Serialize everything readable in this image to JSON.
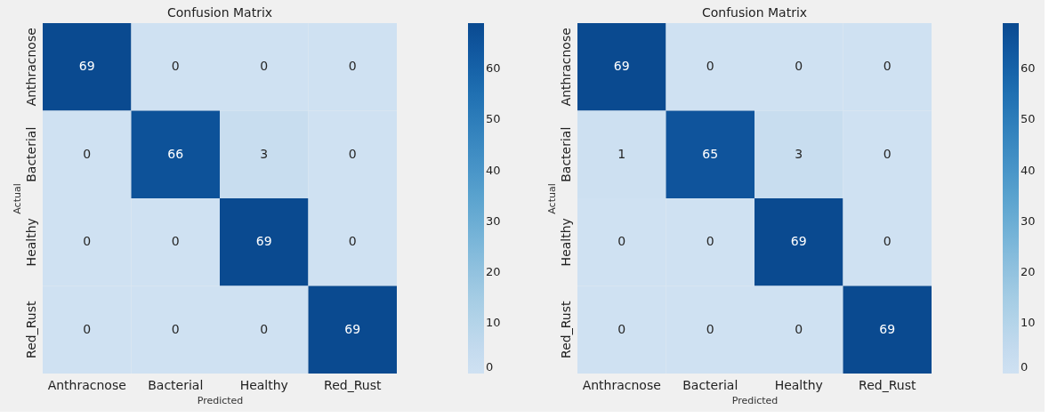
{
  "chart_data": [
    {
      "type": "heatmap",
      "title": "Confusion Matrix",
      "xlabel": "Predicted",
      "ylabel": "Actual",
      "categories": [
        "Anthracnose",
        "Bacterial",
        "Healthy",
        "Red_Rust"
      ],
      "y_categories": [
        "Anthracnose",
        "Bacterial",
        "Healthy",
        "Red_Rust"
      ],
      "cells": [
        [
          69,
          0,
          0,
          0
        ],
        [
          0,
          66,
          3,
          0
        ],
        [
          0,
          0,
          69,
          0
        ],
        [
          0,
          0,
          0,
          69
        ]
      ],
      "clim": [
        0,
        69
      ],
      "cticks": [
        0,
        10,
        20,
        30,
        40,
        50,
        60
      ],
      "data_labels": true
    },
    {
      "type": "heatmap",
      "title": "Confusion Matrix",
      "xlabel": "Predicted",
      "ylabel": "Actual",
      "categories": [
        "Anthracnose",
        "Bacterial",
        "Healthy",
        "Red_Rust"
      ],
      "y_categories": [
        "Anthracnose",
        "Bacterial",
        "Healthy",
        "Red_Rust"
      ],
      "cells": [
        [
          69,
          0,
          0,
          0
        ],
        [
          1,
          65,
          3,
          0
        ],
        [
          0,
          0,
          69,
          0
        ],
        [
          0,
          0,
          0,
          69
        ]
      ],
      "clim": [
        0,
        69
      ],
      "cticks": [
        0,
        10,
        20,
        30,
        40,
        50,
        60
      ],
      "data_labels": true
    }
  ]
}
